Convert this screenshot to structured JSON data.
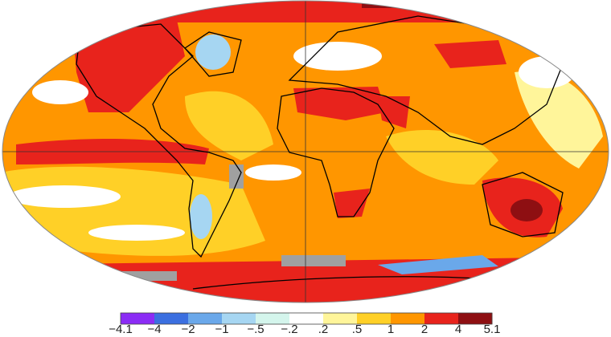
{
  "colorbar": {
    "labels": [
      "−4.1",
      "−4",
      "−2",
      "−1",
      "−.5",
      "−.2",
      ".2",
      ".5",
      "1",
      "2",
      "4",
      "5.1"
    ],
    "colors": [
      "#8b2cf5",
      "#3b6fe0",
      "#6aa8ea",
      "#a6d6f2",
      "#d4f5ec",
      "#ffffff",
      "#fff59a",
      "#ffd027",
      "#ff9600",
      "#e8231c",
      "#8e0f12"
    ]
  }
}
